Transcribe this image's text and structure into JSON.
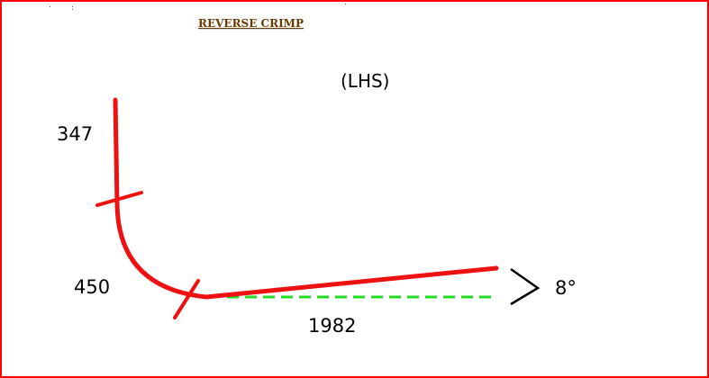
{
  "title": "REVERSE CRIMP",
  "side_label": "(LHS)",
  "dimensions": {
    "vertical_leg": "347",
    "bend": "450",
    "horizontal_leg": "1982",
    "angle": "8°"
  },
  "colors": {
    "frame": "#ff0000",
    "bar": "#ee1111",
    "reference_line": "#22dd22",
    "title_text": "#6b3a00",
    "text": "#000000"
  }
}
